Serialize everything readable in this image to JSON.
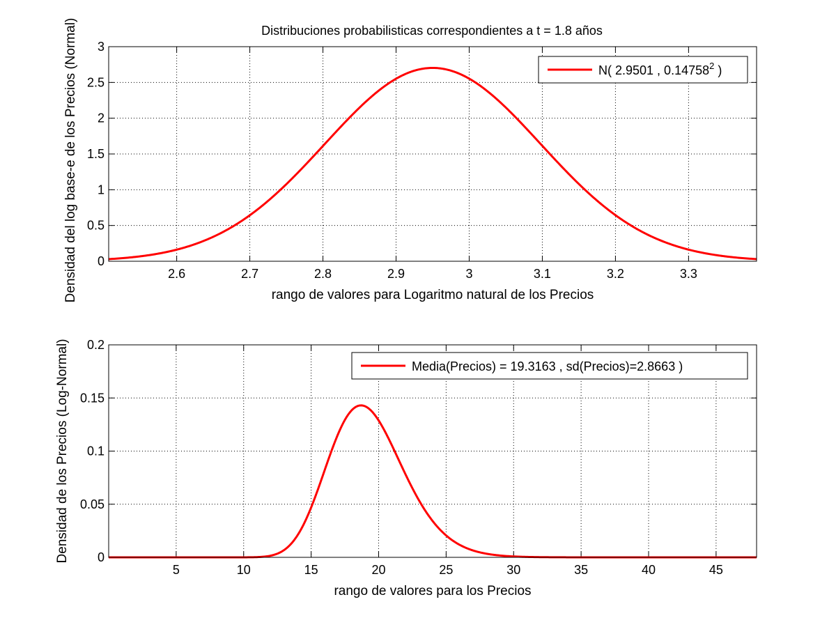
{
  "figure": {
    "title": "Distribuciones probabilisticas correspondientes a t = 1.8 años"
  },
  "chart_data": [
    {
      "type": "line",
      "xlabel": "rango de valores para Logaritmo natural de los Precios",
      "ylabel": "Densidad del log base-e de los Precios (Normal)",
      "xlim": [
        2.507,
        3.393
      ],
      "ylim": [
        0,
        3
      ],
      "xticks": [
        "2.6",
        "2.7",
        "2.8",
        "2.9",
        "3",
        "3.1",
        "3.2",
        "3.3"
      ],
      "yticks": [
        "0",
        "0.5",
        "1",
        "1.5",
        "2",
        "2.5",
        "3"
      ],
      "grid": true,
      "legend": "top-right",
      "line_color": "#ff0000",
      "series": [
        {
          "name": "N( 2.9501 , 0.14758",
          "name_superscript": "2",
          "name_suffix": " )",
          "distribution": "normal",
          "mean": 2.9501,
          "sd": 0.14758
        }
      ]
    },
    {
      "type": "line",
      "xlabel": "rango de valores para los Precios",
      "ylabel": "Densidad de los Precios (Log-Normal)",
      "xlim": [
        0,
        48
      ],
      "ylim": [
        0,
        0.2
      ],
      "xticks": [
        "5",
        "10",
        "15",
        "20",
        "25",
        "30",
        "35",
        "40",
        "45"
      ],
      "yticks": [
        "0",
        "0.05",
        "0.1",
        "0.15",
        "0.2"
      ],
      "grid": true,
      "legend": "top-right",
      "line_color": "#ff0000",
      "series": [
        {
          "name": "Media(Precios) = 19.3163 , sd(Precios)=2.8663 )",
          "distribution": "lognormal",
          "mu": 2.9501,
          "sigma": 0.14758
        }
      ]
    }
  ]
}
